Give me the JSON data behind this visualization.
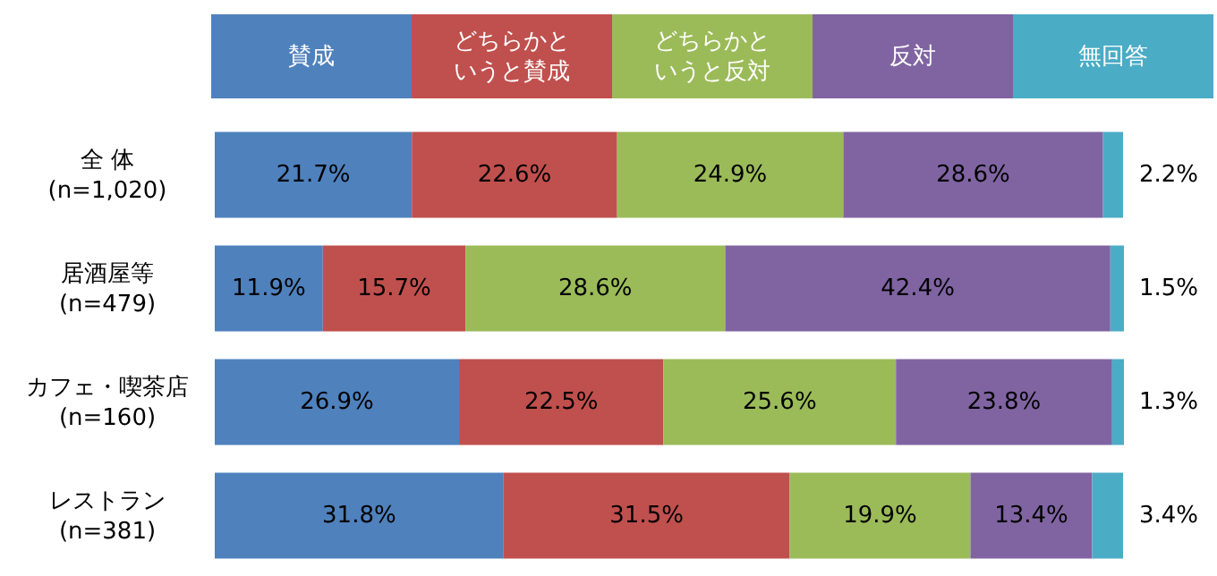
{
  "chart_data": {
    "type": "bar",
    "orientation": "horizontal",
    "stacked": true,
    "legend": "top",
    "categories": [
      "全 体\n(n=1,020)",
      "居酒屋等\n(n=479)",
      "カフェ・喫茶店\n(n=160)",
      "レストラン\n(n=381)"
    ],
    "series": [
      {
        "name": "賛成",
        "color": "#4f81bd",
        "values": [
          21.7,
          11.9,
          26.9,
          31.8
        ],
        "value_labels": [
          "21.7%",
          "11.9%",
          "26.9%",
          "31.8%"
        ]
      },
      {
        "name": "どちらかというと賛成",
        "color": "#c0504d",
        "values": [
          22.6,
          15.7,
          22.5,
          31.5
        ],
        "value_labels": [
          "22.6%",
          "15.7%",
          "22.5%",
          "31.5%"
        ]
      },
      {
        "name": "どちらかというと反対",
        "color": "#9bbb59",
        "values": [
          24.9,
          28.6,
          25.6,
          19.9
        ],
        "value_labels": [
          "24.9%",
          "28.6%",
          "25.6%",
          "19.9%"
        ]
      },
      {
        "name": "反対",
        "color": "#8064a2",
        "values": [
          28.6,
          42.4,
          23.8,
          13.4
        ],
        "value_labels": [
          "28.6%",
          "42.4%",
          "23.8%",
          "13.4%"
        ]
      },
      {
        "name": "無回答",
        "color": "#4bacc6",
        "values": [
          2.2,
          1.5,
          1.3,
          3.4
        ],
        "value_labels": [
          "2.2%",
          "1.5%",
          "1.3%",
          "3.4%"
        ]
      }
    ]
  }
}
